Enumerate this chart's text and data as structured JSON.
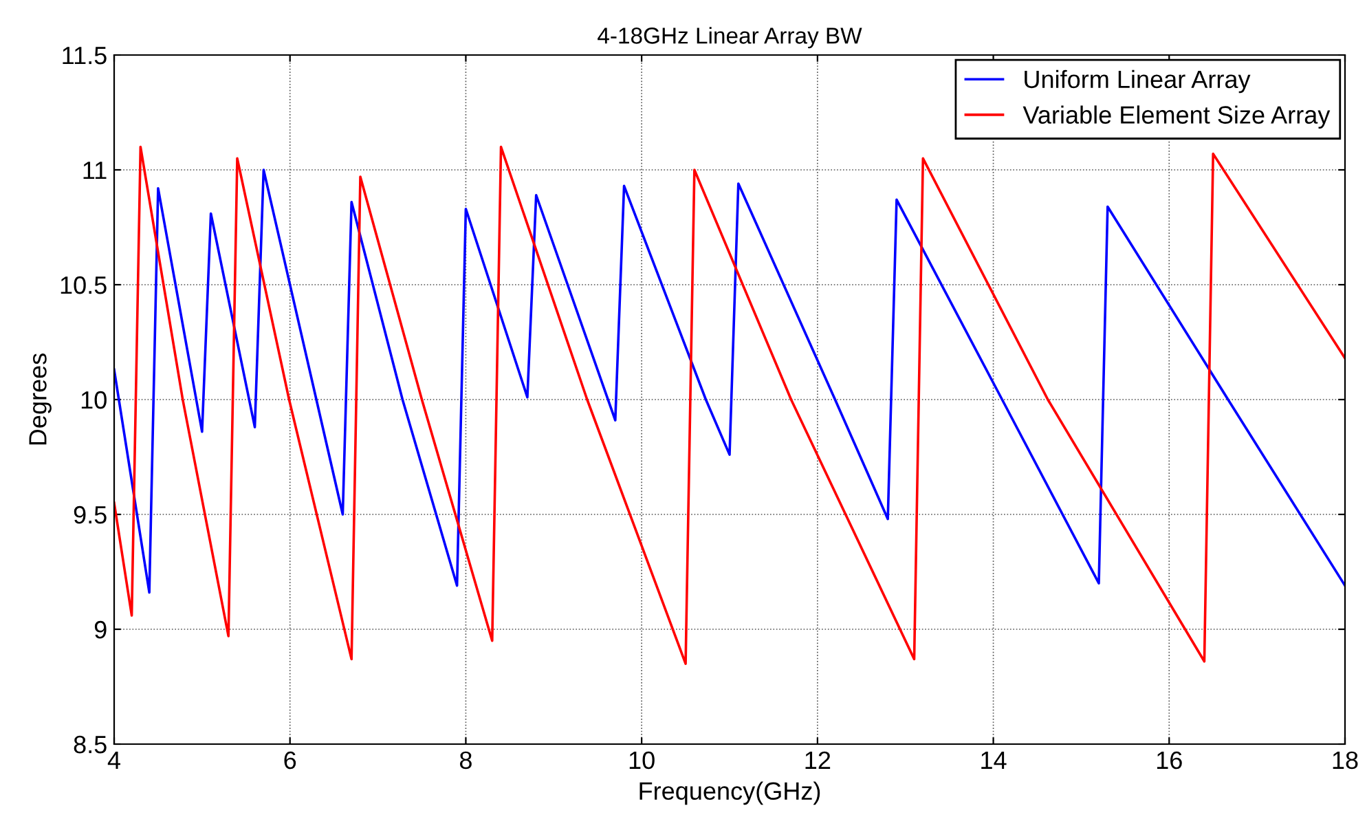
{
  "chart_data": {
    "type": "line",
    "title": "4-18GHz Linear Array BW",
    "xlabel": "Frequency(GHz)",
    "ylabel": "Degrees",
    "series": [
      {
        "name": "Uniform Linear Array",
        "color": "#0000ff",
        "x": [
          4,
          4.4,
          4.5,
          5.0,
          5.1,
          5.6,
          5.7,
          6.3,
          6.6,
          6.7,
          7.28,
          7.9,
          8.0,
          8.7,
          8.8,
          9.7,
          9.8,
          10.73,
          11.0,
          11.1,
          12.2,
          12.8,
          12.9,
          14.1,
          15.2,
          15.3,
          16.67,
          18
        ],
        "values": [
          10.13,
          9.16,
          10.92,
          9.86,
          10.81,
          9.88,
          11.0,
          10.0,
          9.5,
          10.86,
          10.0,
          9.19,
          10.83,
          10.01,
          10.89,
          9.91,
          10.93,
          10.0,
          9.76,
          10.94,
          10.0,
          9.48,
          10.87,
          10.0,
          9.2,
          10.84,
          10.0,
          9.19
        ]
      },
      {
        "name": "Variable Element Size Array",
        "color": "#ff0000",
        "x": [
          4,
          4.2,
          4.3,
          4.78,
          5.3,
          5.4,
          5.99,
          6.7,
          6.8,
          7.5,
          8.3,
          8.4,
          9.38,
          10.5,
          10.6,
          11.7,
          13.1,
          13.2,
          14.62,
          16.4,
          16.5,
          18
        ],
        "values": [
          9.55,
          9.06,
          11.1,
          10.0,
          8.97,
          11.05,
          10.0,
          8.87,
          10.97,
          10.0,
          8.95,
          11.1,
          10.0,
          8.85,
          11.0,
          10.0,
          8.87,
          11.05,
          10.0,
          8.86,
          11.07,
          10.18
        ]
      }
    ],
    "xlim": [
      4,
      18
    ],
    "xticks": [
      4,
      6,
      8,
      10,
      12,
      14,
      16,
      18
    ],
    "ylim": [
      8.5,
      11.5
    ],
    "yticks": [
      8.5,
      9,
      9.5,
      10,
      10.5,
      11,
      11.5
    ],
    "grid": true,
    "legend": "top right",
    "marker": "none",
    "line_style": "solid"
  }
}
